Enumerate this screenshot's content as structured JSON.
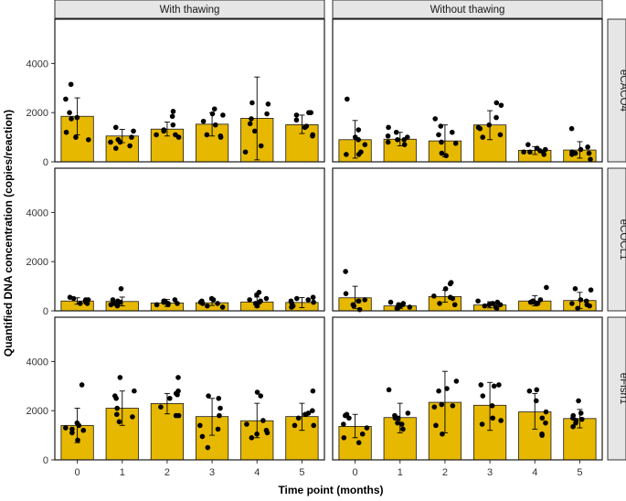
{
  "chart_data": {
    "type": "bar",
    "xlabel": "Time point (months)",
    "ylabel": "Quantified DNA concentration (copies/reaction)",
    "x_ticks": [
      "0",
      "1",
      "2",
      "3",
      "4",
      "5"
    ],
    "y_ticks": [
      "0",
      "2000",
      "4000"
    ],
    "ylim": [
      0,
      5800
    ],
    "grid": false,
    "legend": "none",
    "bar_color": "#E6B800",
    "facet_columns": [
      "With thawing",
      "Without thawing"
    ],
    "facet_rows": [
      "eCACO4",
      "eCOCL1",
      "eFish1"
    ],
    "panels": [
      {
        "row": 0,
        "col": 0,
        "bars": [
          1850,
          1050,
          1330,
          1530,
          1770,
          1510
        ],
        "err_lo": [
          1100,
          780,
          1050,
          1050,
          80,
          1150
        ],
        "err_hi": [
          2600,
          1320,
          1620,
          2000,
          3450,
          1900
        ],
        "points": [
          [
            1000,
            1800,
            3150,
            2550,
            2000,
            1200,
            900,
            1750
          ],
          [
            1400,
            900,
            800,
            1250,
            650,
            550,
            1000,
            800
          ],
          [
            1300,
            1250,
            1850,
            1500,
            2050,
            1100,
            1000,
            1100
          ],
          [
            1900,
            1100,
            2150,
            1500,
            1650,
            1000,
            1950,
            1050
          ],
          [
            2350,
            1250,
            650,
            1950,
            2400,
            400,
            1750,
            1550
          ],
          [
            1700,
            2000,
            1900,
            1450,
            1050,
            1100,
            1400,
            2000
          ]
        ]
      },
      {
        "row": 0,
        "col": 1,
        "bars": [
          900,
          920,
          850,
          1500,
          470,
          480
        ],
        "err_lo": [
          150,
          650,
          200,
          900,
          300,
          150
        ],
        "err_hi": [
          1680,
          1200,
          1500,
          2080,
          620,
          820
        ],
        "points": [
          [
            1300,
            700,
            300,
            2550,
            400,
            900,
            300,
            1000
          ],
          [
            1400,
            1200,
            800,
            900,
            1050,
            700,
            900,
            1000
          ],
          [
            1200,
            350,
            800,
            1750,
            750,
            1100,
            1450,
            250
          ],
          [
            1800,
            1350,
            1000,
            2400,
            1500,
            2300,
            1100,
            1400
          ],
          [
            500,
            400,
            450,
            700,
            400,
            300,
            550,
            400
          ],
          [
            600,
            100,
            1350,
            350,
            300,
            500,
            400,
            350
          ]
        ]
      },
      {
        "row": 1,
        "col": 0,
        "bars": [
          400,
          380,
          320,
          330,
          360,
          340
        ],
        "err_lo": [
          270,
          200,
          180,
          220,
          150,
          130
        ],
        "err_hi": [
          530,
          560,
          460,
          440,
          560,
          540
        ],
        "points": [
          [
            450,
            350,
            500,
            300,
            450,
            550,
            400,
            300
          ],
          [
            200,
            350,
            900,
            450,
            300,
            400,
            350,
            250
          ],
          [
            400,
            250,
            350,
            250,
            300,
            450,
            300,
            400
          ],
          [
            400,
            350,
            450,
            200,
            150,
            300,
            500,
            300
          ],
          [
            300,
            500,
            650,
            750,
            200,
            350,
            450,
            400
          ],
          [
            400,
            200,
            350,
            500,
            450,
            300,
            550,
            150
          ]
        ]
      },
      {
        "row": 1,
        "col": 1,
        "bars": [
          530,
          200,
          580,
          240,
          400,
          420
        ],
        "err_lo": [
          100,
          100,
          350,
          120,
          200,
          100
        ],
        "err_hi": [
          1000,
          300,
          830,
          370,
          620,
          750
        ],
        "points": [
          [
            400,
            1600,
            50,
            200,
            250,
            400,
            700,
            450
          ],
          [
            100,
            250,
            150,
            300,
            200,
            100,
            350,
            250
          ],
          [
            250,
            900,
            550,
            1100,
            1150,
            600,
            500,
            300
          ],
          [
            250,
            150,
            300,
            350,
            400,
            250,
            200,
            100
          ],
          [
            400,
            450,
            350,
            950,
            300,
            300,
            400,
            350
          ],
          [
            200,
            300,
            900,
            850,
            400,
            100,
            450,
            250
          ]
        ]
      },
      {
        "row": 2,
        "col": 0,
        "bars": [
          1400,
          2100,
          2290,
          1760,
          1590,
          1760
        ],
        "err_lo": [
          700,
          1400,
          1870,
          1000,
          900,
          1200
        ],
        "err_hi": [
          2100,
          2800,
          2700,
          2500,
          2300,
          2300
        ],
        "points": [
          [
            3050,
            1100,
            800,
            1250,
            1500,
            1300,
            1200,
            1400
          ],
          [
            3350,
            2800,
            1850,
            2500,
            1750,
            2100,
            1550,
            2600
          ],
          [
            3350,
            2150,
            1800,
            2800,
            2500,
            2650,
            1800,
            2700
          ],
          [
            2600,
            2500,
            500,
            1800,
            1400,
            1250,
            2100,
            950
          ],
          [
            2750,
            2600,
            1200,
            1050,
            1600,
            1100,
            900,
            1450
          ],
          [
            2800,
            1900,
            1400,
            2000,
            1850,
            1400,
            1850,
            1700
          ]
        ]
      },
      {
        "row": 2,
        "col": 1,
        "bars": [
          1360,
          1720,
          2340,
          2220,
          1950,
          1680
        ],
        "err_lo": [
          900,
          1100,
          1100,
          1200,
          1250,
          1300
        ],
        "err_hi": [
          1850,
          2300,
          3600,
          3150,
          2700,
          2050
        ],
        "points": [
          [
            1850,
            1300,
            1450,
            900,
            1050,
            1800,
            700,
            1700
          ],
          [
            2850,
            1700,
            1900,
            1500,
            1800,
            1250,
            1450,
            1700
          ],
          [
            2800,
            2150,
            1400,
            1050,
            2200,
            2250,
            3200,
            2900
          ],
          [
            2600,
            1700,
            3050,
            3000,
            1450,
            2200,
            3050,
            1600
          ],
          [
            2850,
            2800,
            1950,
            1050,
            1500,
            2400,
            1000,
            1700
          ],
          [
            2400,
            1800,
            1600,
            1900,
            1650,
            1350,
            1700,
            1500
          ]
        ]
      }
    ]
  }
}
